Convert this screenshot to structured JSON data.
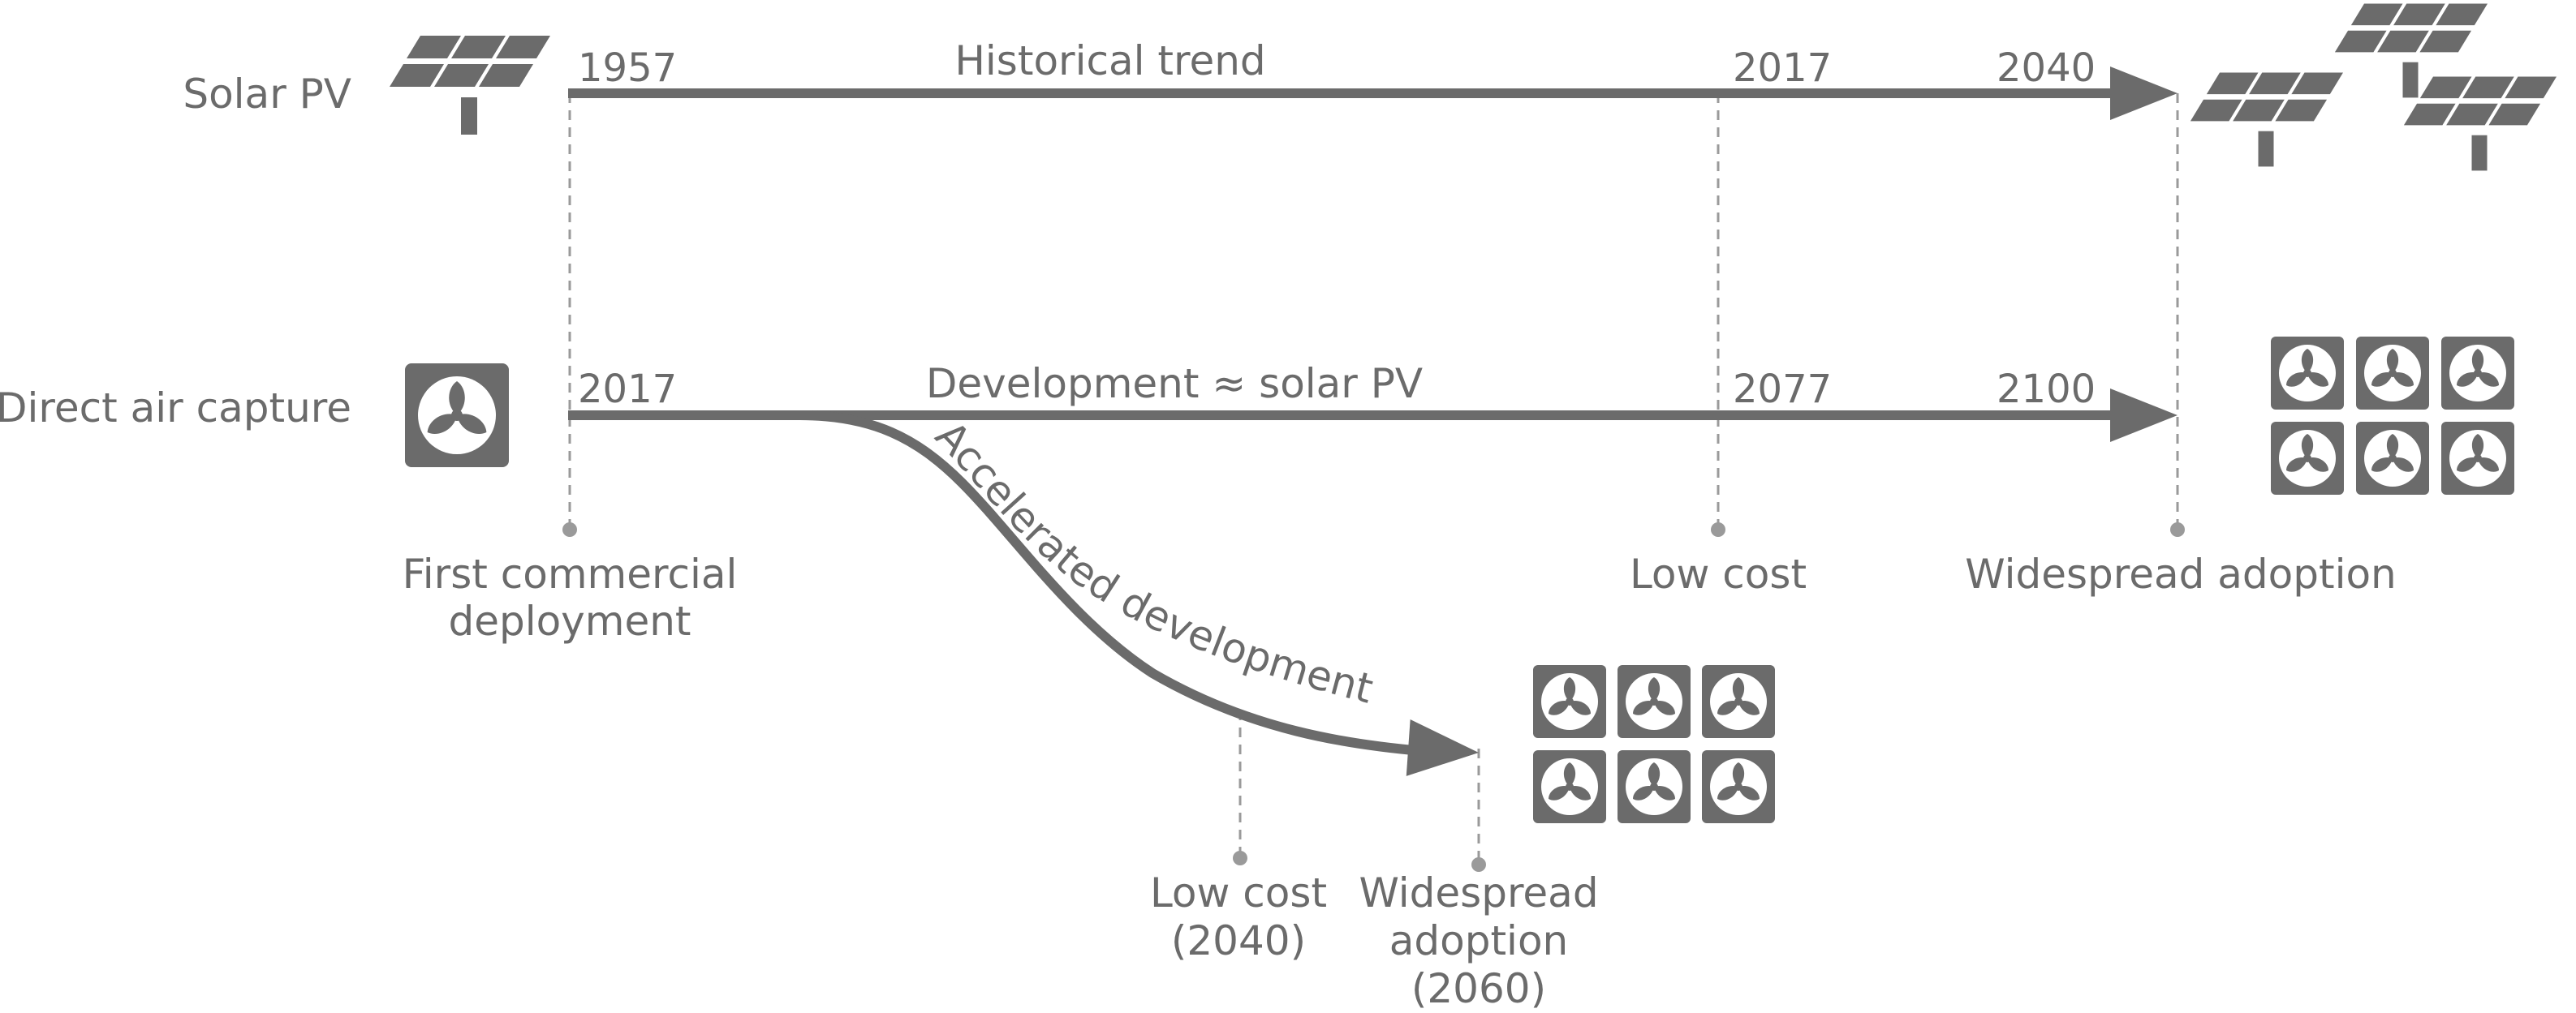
{
  "colors": {
    "ink": "#6b6b6b",
    "dash": "#9a9a9a",
    "background": "#ffffff"
  },
  "rows": {
    "solar": {
      "label": "Solar PV",
      "caption": "Historical trend",
      "year_start": "1957",
      "year_low_cost": "2017",
      "year_widespread": "2040",
      "icon": "solar-panel-icon"
    },
    "dac": {
      "label": "Direct air capture",
      "caption": "Development ≈ solar PV",
      "year_start": "2017",
      "year_low_cost": "2077",
      "year_widespread": "2100",
      "icon": "fan-icon"
    }
  },
  "milestones": {
    "first_line1": "First commercial",
    "first_line2": "deployment",
    "low_cost": "Low cost",
    "widespread": "Widespread adoption"
  },
  "accelerated": {
    "caption": "Accelerated development",
    "low_cost_line1": "Low cost",
    "low_cost_line2": "(2040)",
    "widespread_line1": "Widespread",
    "widespread_line2": "adoption",
    "widespread_line3": "(2060)"
  }
}
